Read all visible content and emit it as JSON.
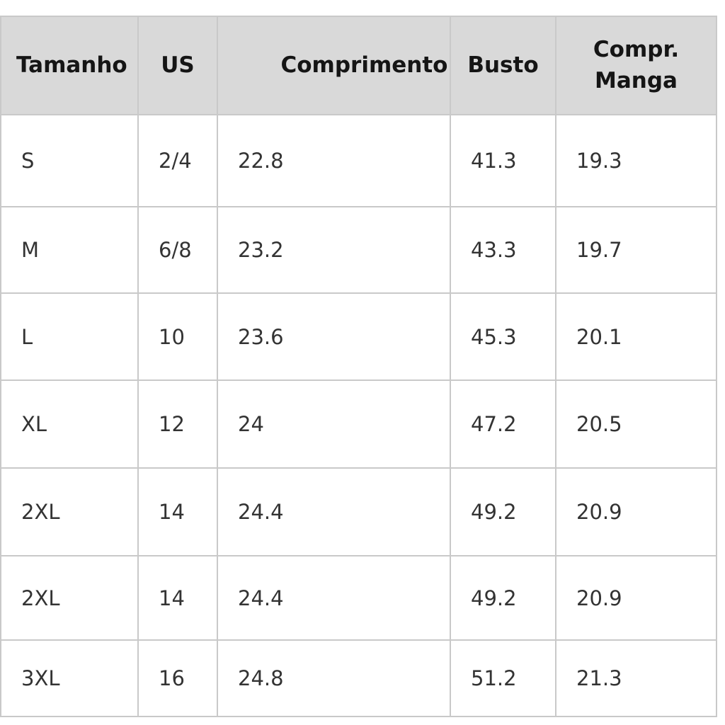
{
  "table": {
    "header": [
      "Tamanho",
      "US",
      "Comprimento",
      "Busto",
      "Compr. Manga"
    ],
    "rows": [
      [
        "S",
        "2/4",
        "22.8",
        "41.3",
        "19.3"
      ],
      [
        "M",
        "6/8",
        "23.2",
        "43.3",
        "19.7"
      ],
      [
        "L",
        "10",
        "23.6",
        "45.3",
        "20.1"
      ],
      [
        "XL",
        "12",
        "24",
        "47.2",
        "20.5"
      ],
      [
        "2XL",
        "14",
        "24.4",
        "49.2",
        "20.9"
      ],
      [
        "2XL",
        "14",
        "24.4",
        "49.2",
        "20.9"
      ],
      [
        "3XL",
        "16",
        "24.8",
        "51.2",
        "21.3"
      ]
    ]
  }
}
